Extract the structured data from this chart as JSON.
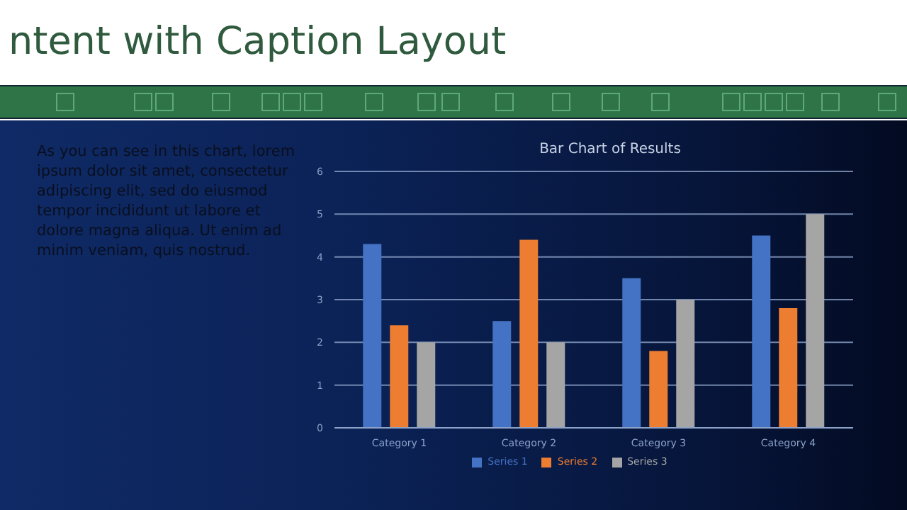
{
  "chart_data": {
    "type": "bar",
    "title": "Bar Chart of Results",
    "annotations": [
      "ntent with Caption Layout",
      "As you can see in this chart, lorem ipsum dolor sit amet, consectetur adipiscing elit, sed do eiusmod tempor incididunt ut labore et dolore magna aliqua. Ut enim ad minim veniam, quis nostrud."
    ],
    "categories": [
      "Category 1",
      "Category 2",
      "Category 3",
      "Category 4"
    ],
    "series": [
      {
        "name": "Series 1",
        "color": "#4472c4",
        "values": [
          4.3,
          2.5,
          3.5,
          4.5
        ]
      },
      {
        "name": "Series 2",
        "color": "#ed7d31",
        "values": [
          2.4,
          4.4,
          1.8,
          2.8
        ]
      },
      {
        "name": "Series 3",
        "color": "#a5a5a5",
        "values": [
          2,
          2,
          3,
          5
        ]
      }
    ],
    "ylim": [
      0,
      6
    ],
    "yticks": [
      0,
      1,
      2,
      3,
      4,
      5,
      6
    ],
    "grid": "y",
    "legend": "bottom"
  }
}
